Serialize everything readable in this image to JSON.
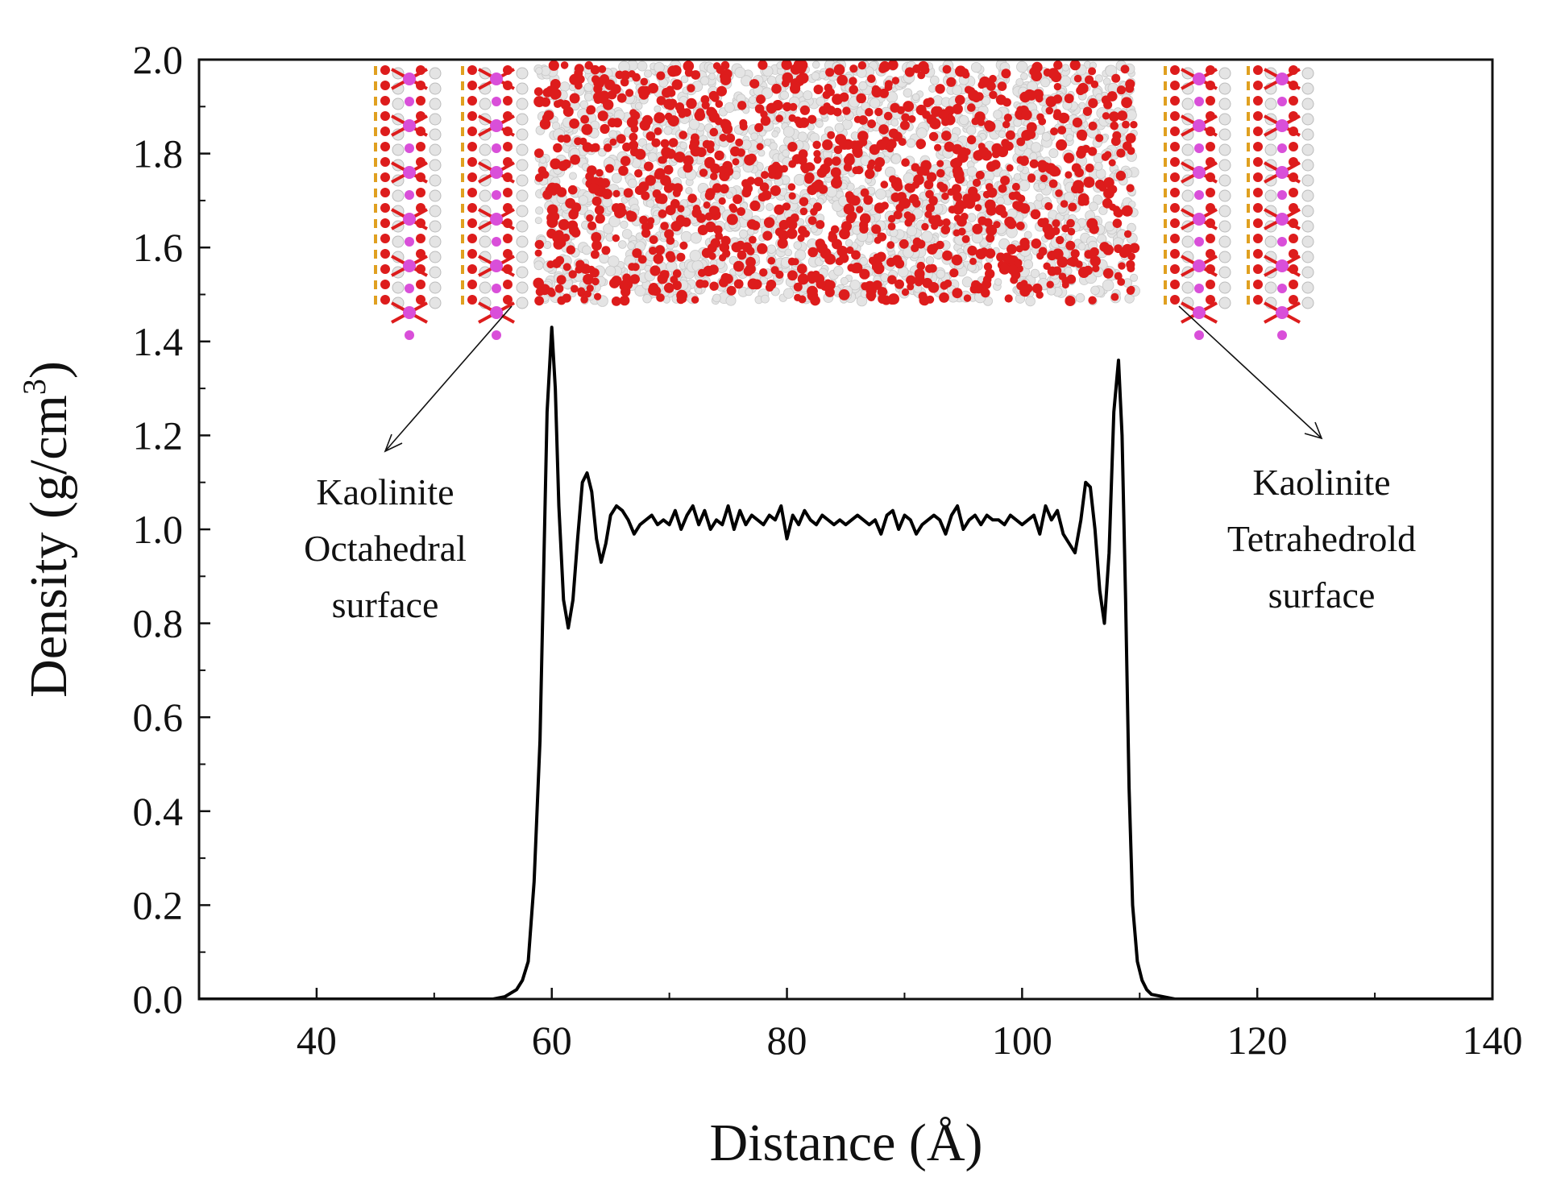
{
  "chart_data": {
    "type": "line",
    "xlabel": "Distance (Å)",
    "ylabel_main": "Density (g/cm",
    "ylabel_sup": "3",
    "ylabel_close": ")",
    "xlim": [
      30,
      140
    ],
    "ylim": [
      0,
      2.0
    ],
    "xticks": [
      40,
      60,
      80,
      100,
      120,
      140
    ],
    "xtick_labels": [
      "40",
      "60",
      "80",
      "100",
      "120",
      "140"
    ],
    "xminor": [
      50,
      70,
      90,
      110,
      130
    ],
    "yticks": [
      0,
      0.2,
      0.4,
      0.6,
      0.8,
      1.0,
      1.2,
      1.4,
      1.6,
      1.8,
      2.0
    ],
    "ytick_labels": [
      "0.0",
      "0.2",
      "0.4",
      "0.6",
      "0.8",
      "1.0",
      "1.2",
      "1.4",
      "1.6",
      "1.8",
      "2.0"
    ],
    "grid": false,
    "series": [
      {
        "color": "#000000",
        "x": [
          30,
          40,
          50,
          55,
          56,
          57,
          57.5,
          58,
          58.5,
          59,
          59.3,
          59.6,
          60,
          60.3,
          60.6,
          61,
          61.4,
          61.8,
          62.2,
          62.6,
          63,
          63.4,
          63.8,
          64.2,
          64.6,
          65,
          65.5,
          66,
          66.5,
          67,
          67.5,
          68,
          68.5,
          69,
          69.5,
          70,
          70.5,
          71,
          71.5,
          72,
          72.5,
          73,
          73.5,
          74,
          74.5,
          75,
          75.5,
          76,
          76.5,
          77,
          77.5,
          78,
          78.5,
          79,
          79.5,
          80,
          80.5,
          81,
          81.5,
          82,
          82.5,
          83,
          83.5,
          84,
          84.5,
          85,
          85.5,
          86,
          86.5,
          87,
          87.5,
          88,
          88.5,
          89,
          89.5,
          90,
          90.5,
          91,
          91.5,
          92,
          92.5,
          93,
          93.5,
          94,
          94.5,
          95,
          95.5,
          96,
          96.5,
          97,
          97.5,
          98,
          98.5,
          99,
          99.5,
          100,
          100.5,
          101,
          101.5,
          102,
          102.5,
          103,
          103.5,
          104,
          104.5,
          105,
          105.4,
          105.8,
          106.2,
          106.6,
          107,
          107.4,
          107.8,
          108.2,
          108.5,
          108.8,
          109.1,
          109.4,
          109.8,
          110.2,
          110.6,
          111,
          112,
          113,
          115,
          120,
          130,
          140
        ],
        "y": [
          0,
          0,
          0,
          0,
          0.005,
          0.02,
          0.04,
          0.08,
          0.25,
          0.55,
          0.9,
          1.25,
          1.43,
          1.3,
          1.05,
          0.85,
          0.79,
          0.85,
          0.98,
          1.1,
          1.12,
          1.08,
          0.98,
          0.93,
          0.97,
          1.03,
          1.05,
          1.04,
          1.02,
          0.99,
          1.01,
          1.02,
          1.03,
          1.01,
          1.02,
          1.01,
          1.04,
          1.0,
          1.03,
          1.05,
          1.01,
          1.04,
          1.0,
          1.02,
          1.01,
          1.05,
          1.0,
          1.04,
          1.01,
          1.03,
          1.02,
          1.01,
          1.03,
          1.02,
          1.05,
          0.98,
          1.03,
          1.01,
          1.04,
          1.02,
          1.01,
          1.03,
          1.02,
          1.01,
          1.02,
          1.01,
          1.02,
          1.03,
          1.02,
          1.01,
          1.02,
          0.99,
          1.03,
          1.04,
          1.0,
          1.03,
          1.02,
          0.99,
          1.01,
          1.02,
          1.03,
          1.02,
          0.99,
          1.03,
          1.05,
          1.0,
          1.02,
          1.03,
          1.01,
          1.03,
          1.02,
          1.02,
          1.01,
          1.03,
          1.02,
          1.01,
          1.02,
          1.03,
          0.99,
          1.05,
          1.02,
          1.04,
          0.99,
          0.97,
          0.95,
          1.02,
          1.1,
          1.09,
          1.0,
          0.87,
          0.8,
          0.95,
          1.25,
          1.36,
          1.2,
          0.85,
          0.45,
          0.2,
          0.08,
          0.04,
          0.02,
          0.01,
          0.005,
          0,
          0,
          0,
          0,
          0
        ]
      }
    ],
    "annotations": [
      {
        "lines": [
          "Kaolinite",
          "Octahedral",
          "surface"
        ]
      },
      {
        "lines": [
          "Kaolinite",
          "Tetrahedrold",
          "surface"
        ]
      }
    ],
    "inset_colors": {
      "oxygen": "#dd1c1c",
      "hydrogen": "#e4e4e4",
      "aluminum": "#d94fd9",
      "silicon": "#e0a020"
    }
  }
}
